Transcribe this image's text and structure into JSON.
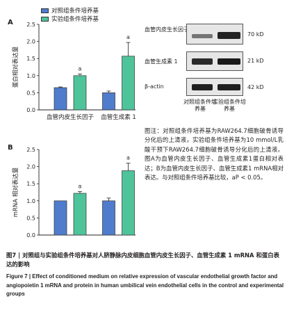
{
  "panel_letters": {
    "a": "A",
    "b": "B"
  },
  "legend": [
    {
      "label": "对照组条件培养基",
      "color": "#4f7ccc"
    },
    {
      "label": "实验组条件培养基",
      "color": "#4fc39a"
    }
  ],
  "chart_data": [
    {
      "type": "bar",
      "panel": "A",
      "categories": [
        "血管内皮生长因子",
        "血管生成素 1"
      ],
      "series": [
        {
          "name": "对照组条件培养基",
          "values": [
            0.65,
            0.5
          ],
          "errors": [
            0.02,
            0.05
          ]
        },
        {
          "name": "实验组条件培养基",
          "values": [
            1.0,
            1.57
          ],
          "errors": [
            0.05,
            0.4
          ]
        }
      ],
      "annotations": [
        "a",
        "a"
      ],
      "ylabel": "蛋白相对表达量",
      "ylim": [
        0,
        2.5
      ],
      "yticks": [
        "0.0",
        "0.5",
        "1.0",
        "1.5",
        "2.0",
        "2.5"
      ]
    },
    {
      "type": "bar",
      "panel": "B",
      "categories": [
        "",
        ""
      ],
      "series": [
        {
          "name": "对照组条件培养基",
          "values": [
            1.0,
            1.0
          ],
          "errors": [
            0.0,
            0.08
          ]
        },
        {
          "name": "实验组条件培养基",
          "values": [
            1.22,
            1.88
          ],
          "errors": [
            0.05,
            0.22
          ]
        }
      ],
      "annotations": [
        "a",
        "a"
      ],
      "ylabel": "mRNA 相对表达量",
      "ylim": [
        0,
        2.5
      ],
      "yticks": [
        "0.0",
        "0.5",
        "1.0",
        "1.5",
        "2.0",
        "2.5"
      ]
    }
  ],
  "blot": {
    "rows": [
      {
        "label": "血管内皮生长因子",
        "kd": "70 kD"
      },
      {
        "label": "血管生成素 1",
        "kd": "21 kD"
      },
      {
        "label": "β-actin",
        "kd": "42 kD"
      }
    ],
    "lanes": [
      "对照组条件培养基",
      "实验组条件培养基"
    ]
  },
  "note": "图注：对照组条件培养基为RAW264.7细胞破骨诱导分化后的上清液，实验组条件培养基为10 mmol/L乳酸干预下RAW264.7细胞破骨诱导分化后的上清液。图A为血管内皮生长因子、血管生成素1蛋白相对表达；B为血管内皮生长因子、血管生成素1 mRNA相对表达。与对照组条件培养基比较，aP < 0.05。",
  "caption_cn": "图7 | 对照组与实验组条件培养基对人脐静脉内皮细胞血管内皮生长因子、血管生成素 1 mRNA 和蛋白表达的影响",
  "caption_en": "Figure 7 | Effect of conditioned medium on relative expression of vascular endothelial growth factor and angiopoietin 1 mRNA and protein in human umbilical vein endothelial cells in the control and experimental groups"
}
